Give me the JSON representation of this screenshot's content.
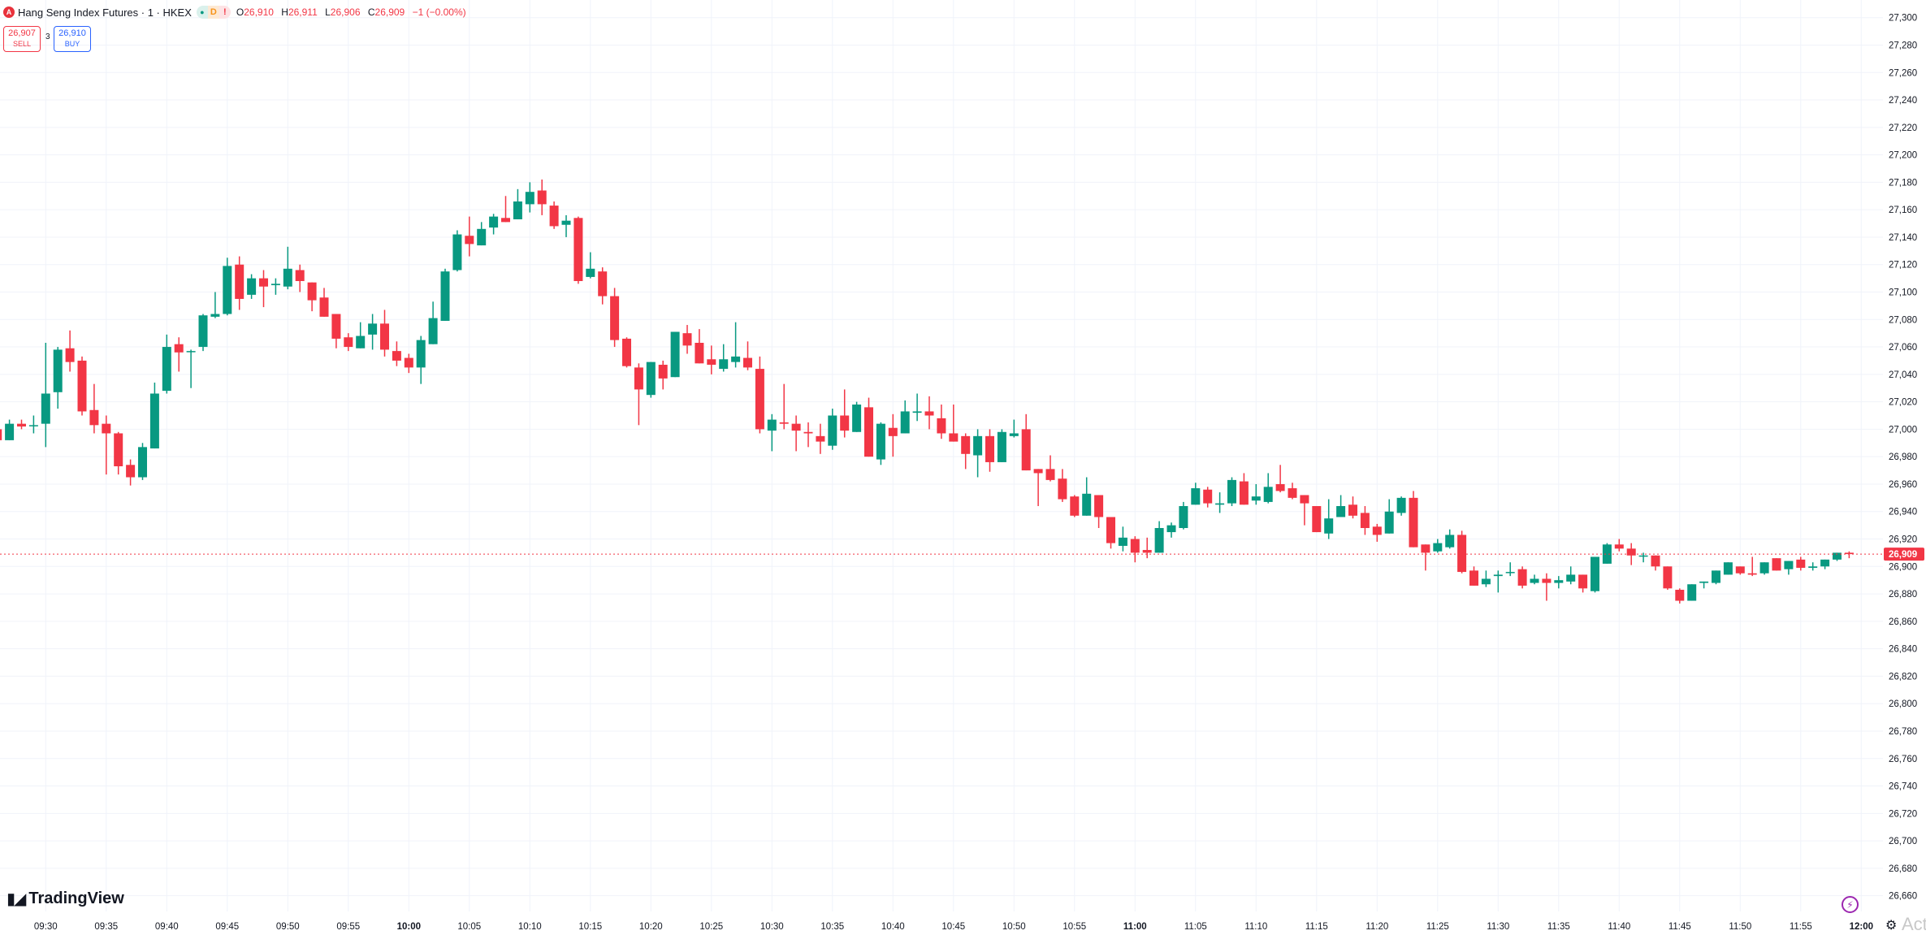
{
  "header": {
    "logo_letter": "A",
    "title": "Hang Seng Index Futures · 1 · HKEX",
    "pills": {
      "dot": "●",
      "d": "D",
      "alert": "!"
    },
    "ohlc": {
      "o_label": "O",
      "o": "26,910",
      "h_label": "H",
      "h": "26,911",
      "l_label": "L",
      "l": "26,906",
      "c_label": "C",
      "c": "26,909",
      "change": "−1 (−0.00%)"
    }
  },
  "trade": {
    "sell_price": "26,907",
    "sell_label": "SELL",
    "spread": "3",
    "buy_price": "26,910",
    "buy_label": "BUY"
  },
  "branding": {
    "logo_text": "TradingView"
  },
  "footer": {
    "lightning_icon": "lightning-icon",
    "settings_icon": "gear-icon",
    "watermark": "Activa"
  },
  "colors": {
    "up": "#089981",
    "down": "#f23645",
    "grid": "#f0f3fa",
    "last_price": "#f23645",
    "accent": "#2962ff"
  },
  "chart_data": {
    "type": "candlestick",
    "interval": "1 minute",
    "ylim": [
      26650,
      27310
    ],
    "grid": true,
    "last_price": 26909,
    "last_price_label": "26,909",
    "y_tick_labels": [
      "27,300",
      "27,280",
      "27,260",
      "27,240",
      "27,220",
      "27,200",
      "27,180",
      "27,160",
      "27,140",
      "27,120",
      "27,100",
      "27,080",
      "27,060",
      "27,040",
      "27,020",
      "27,000",
      "26,980",
      "26,960",
      "26,940",
      "26,920",
      "26,900",
      "26,880",
      "26,860",
      "26,840",
      "26,820",
      "26,800",
      "26,780",
      "26,760",
      "26,740",
      "26,720",
      "26,700",
      "26,680",
      "26,660"
    ],
    "x_tick_labels": [
      "09:30",
      "09:35",
      "09:40",
      "09:45",
      "09:50",
      "09:55",
      "10:00",
      "10:05",
      "10:10",
      "10:15",
      "10:20",
      "10:25",
      "10:30",
      "10:35",
      "10:40",
      "10:45",
      "10:50",
      "10:55",
      "11:00",
      "11:05",
      "11:10",
      "11:15",
      "11:20",
      "11:25",
      "11:30",
      "11:35",
      "11:40",
      "11:45",
      "11:50",
      "11:55",
      "12:00"
    ],
    "x_bold_labels": [
      "10:00",
      "11:00",
      "12:00"
    ],
    "candles_columns": [
      "time",
      "open",
      "high",
      "low",
      "close"
    ],
    "candles": [
      [
        "09:26",
        27000,
        27002,
        26990,
        26992
      ],
      [
        "09:27",
        26992,
        27007,
        26992,
        27004
      ],
      [
        "09:28",
        27004,
        27007,
        27000,
        27002
      ],
      [
        "09:29",
        27003,
        27010,
        26997,
        27003
      ],
      [
        "09:30",
        27004,
        27063,
        26987,
        27026
      ],
      [
        "09:31",
        27027,
        27060,
        27015,
        27058
      ],
      [
        "09:32",
        27059,
        27072,
        27042,
        27049
      ],
      [
        "09:33",
        27050,
        27053,
        27010,
        27013
      ],
      [
        "09:34",
        27014,
        27033,
        26997,
        27003
      ],
      [
        "09:35",
        27004,
        27010,
        26967,
        26997
      ],
      [
        "09:36",
        26997,
        26998,
        26967,
        26973
      ],
      [
        "09:37",
        26974,
        26978,
        26959,
        26965
      ],
      [
        "09:38",
        26965,
        26990,
        26963,
        26987
      ],
      [
        "09:39",
        26986,
        27034,
        26986,
        27026
      ],
      [
        "09:40",
        27028,
        27069,
        27026,
        27060
      ],
      [
        "09:41",
        27062,
        27067,
        27042,
        27056
      ],
      [
        "09:42",
        27057,
        27058,
        27030,
        27057
      ],
      [
        "09:43",
        27060,
        27084,
        27057,
        27083
      ],
      [
        "09:44",
        27082,
        27100,
        27081,
        27084
      ],
      [
        "09:45",
        27084,
        27125,
        27083,
        27119
      ],
      [
        "09:46",
        27120,
        27126,
        27087,
        27095
      ],
      [
        "09:47",
        27098,
        27113,
        27095,
        27110
      ],
      [
        "09:48",
        27110,
        27116,
        27089,
        27104
      ],
      [
        "09:49",
        27105,
        27110,
        27098,
        27106
      ],
      [
        "09:50",
        27104,
        27133,
        27102,
        27117
      ],
      [
        "09:51",
        27116,
        27120,
        27100,
        27108
      ],
      [
        "09:52",
        27107,
        27107,
        27086,
        27094
      ],
      [
        "09:53",
        27096,
        27103,
        27082,
        27082
      ],
      [
        "09:54",
        27084,
        27084,
        27059,
        27066
      ],
      [
        "09:55",
        27067,
        27070,
        27057,
        27060
      ],
      [
        "09:56",
        27059,
        27078,
        27059,
        27068
      ],
      [
        "09:57",
        27069,
        27084,
        27058,
        27077
      ],
      [
        "09:58",
        27077,
        27087,
        27053,
        27058
      ],
      [
        "09:59",
        27057,
        27064,
        27046,
        27050
      ],
      [
        "10:00",
        27052,
        27055,
        27041,
        27045
      ],
      [
        "10:01",
        27045,
        27068,
        27033,
        27065
      ],
      [
        "10:02",
        27062,
        27093,
        27062,
        27081
      ],
      [
        "10:03",
        27079,
        27117,
        27079,
        27115
      ],
      [
        "10:04",
        27116,
        27145,
        27115,
        27142
      ],
      [
        "10:05",
        27141,
        27155,
        27126,
        27135
      ],
      [
        "10:06",
        27134,
        27151,
        27134,
        27146
      ],
      [
        "10:07",
        27147,
        27157,
        27142,
        27155
      ],
      [
        "10:08",
        27154,
        27170,
        27151,
        27151
      ],
      [
        "10:09",
        27153,
        27175,
        27153,
        27166
      ],
      [
        "10:10",
        27164,
        27180,
        27158,
        27173
      ],
      [
        "10:11",
        27174,
        27182,
        27156,
        27164
      ],
      [
        "10:12",
        27163,
        27166,
        27146,
        27148
      ],
      [
        "10:13",
        27149,
        27156,
        27140,
        27152
      ],
      [
        "10:14",
        27154,
        27155,
        27106,
        27108
      ],
      [
        "10:15",
        27111,
        27129,
        27110,
        27117
      ],
      [
        "10:16",
        27115,
        27118,
        27091,
        27097
      ],
      [
        "10:17",
        27097,
        27103,
        27060,
        27065
      ],
      [
        "10:18",
        27066,
        27067,
        27045,
        27046
      ],
      [
        "10:19",
        27045,
        27048,
        27003,
        27029
      ],
      [
        "10:20",
        27025,
        27049,
        27023,
        27049
      ],
      [
        "10:21",
        27047,
        27050,
        27029,
        27037
      ],
      [
        "10:22",
        27038,
        27071,
        27038,
        27071
      ],
      [
        "10:23",
        27070,
        27076,
        27055,
        27061
      ],
      [
        "10:24",
        27063,
        27073,
        27048,
        27048
      ],
      [
        "10:25",
        27051,
        27061,
        27040,
        27047
      ],
      [
        "10:26",
        27044,
        27062,
        27042,
        27051
      ],
      [
        "10:27",
        27049,
        27078,
        27045,
        27053
      ],
      [
        "10:28",
        27052,
        27064,
        27043,
        27045
      ],
      [
        "10:29",
        27044,
        27053,
        26997,
        27000
      ],
      [
        "10:30",
        26999,
        27011,
        26984,
        27007
      ],
      [
        "10:31",
        27005,
        27033,
        27000,
        27004
      ],
      [
        "10:32",
        27004,
        27010,
        26984,
        26999
      ],
      [
        "10:33",
        26998,
        27005,
        26987,
        26997
      ],
      [
        "10:34",
        26995,
        27004,
        26982,
        26991
      ],
      [
        "10:35",
        26988,
        27015,
        26985,
        27010
      ],
      [
        "10:36",
        27010,
        27029,
        26994,
        26999
      ],
      [
        "10:37",
        26998,
        27020,
        26998,
        27018
      ],
      [
        "10:38",
        27016,
        27023,
        26980,
        26980
      ],
      [
        "10:39",
        26978,
        27005,
        26974,
        27004
      ],
      [
        "10:40",
        27001,
        27011,
        26980,
        26995
      ],
      [
        "10:41",
        26997,
        27021,
        26997,
        27013
      ],
      [
        "10:42",
        27012,
        27026,
        27006,
        27013
      ],
      [
        "10:43",
        27013,
        27024,
        27000,
        27010
      ],
      [
        "10:44",
        27008,
        27018,
        26993,
        26997
      ],
      [
        "10:45",
        26997,
        27018,
        26991,
        26991
      ],
      [
        "10:46",
        26995,
        26997,
        26971,
        26982
      ],
      [
        "10:47",
        26981,
        27000,
        26965,
        26995
      ],
      [
        "10:48",
        26995,
        27000,
        26969,
        26976
      ],
      [
        "10:49",
        26976,
        27000,
        26976,
        26998
      ],
      [
        "10:50",
        26995,
        27007,
        26994,
        26997
      ],
      [
        "10:51",
        27000,
        27011,
        26970,
        26970
      ],
      [
        "10:52",
        26971,
        26971,
        26944,
        26968
      ],
      [
        "10:53",
        26971,
        26981,
        26962,
        26963
      ],
      [
        "10:54",
        26964,
        26971,
        26947,
        26949
      ],
      [
        "10:55",
        26951,
        26952,
        26936,
        26937
      ],
      [
        "10:56",
        26937,
        26965,
        26937,
        26953
      ],
      [
        "10:57",
        26952,
        26952,
        26928,
        26936
      ],
      [
        "10:58",
        26936,
        26936,
        26913,
        26917
      ],
      [
        "10:59",
        26915,
        26929,
        26911,
        26921
      ],
      [
        "11:00",
        26920,
        26922,
        26903,
        26910
      ],
      [
        "11:01",
        26912,
        26921,
        26906,
        26910
      ],
      [
        "11:02",
        26910,
        26933,
        26910,
        26928
      ],
      [
        "11:03",
        26925,
        26932,
        26921,
        26930
      ],
      [
        "11:04",
        26928,
        26947,
        26927,
        26944
      ],
      [
        "11:05",
        26945,
        26961,
        26945,
        26957
      ],
      [
        "11:06",
        26956,
        26958,
        26943,
        26946
      ],
      [
        "11:07",
        26945,
        26954,
        26939,
        26946
      ],
      [
        "11:08",
        26946,
        26965,
        26944,
        26963
      ],
      [
        "11:09",
        26962,
        26968,
        26945,
        26945
      ],
      [
        "11:10",
        26948,
        26960,
        26945,
        26951
      ],
      [
        "11:11",
        26947,
        26968,
        26946,
        26958
      ],
      [
        "11:12",
        26960,
        26974,
        26954,
        26955
      ],
      [
        "11:13",
        26957,
        26961,
        26949,
        26950
      ],
      [
        "11:14",
        26952,
        26952,
        26930,
        26946
      ],
      [
        "11:15",
        26944,
        26944,
        26925,
        26925
      ],
      [
        "11:16",
        26924,
        26949,
        26920,
        26935
      ],
      [
        "11:17",
        26936,
        26952,
        26936,
        26944
      ],
      [
        "11:18",
        26945,
        26951,
        26935,
        26937
      ],
      [
        "11:19",
        26939,
        26944,
        26923,
        26928
      ],
      [
        "11:20",
        26929,
        26931,
        26918,
        26923
      ],
      [
        "11:21",
        26924,
        26949,
        26924,
        26940
      ],
      [
        "11:22",
        26939,
        26951,
        26937,
        26950
      ],
      [
        "11:23",
        26950,
        26955,
        26914,
        26914
      ],
      [
        "11:24",
        26916,
        26916,
        26897,
        26910
      ],
      [
        "11:25",
        26911,
        26920,
        26910,
        26917
      ],
      [
        "11:26",
        26914,
        26927,
        26913,
        26923
      ],
      [
        "11:27",
        26923,
        26926,
        26895,
        26896
      ],
      [
        "11:28",
        26897,
        26900,
        26886,
        26886
      ],
      [
        "11:29",
        26887,
        26897,
        26885,
        26891
      ],
      [
        "11:30",
        26893,
        26897,
        26881,
        26894
      ],
      [
        "11:31",
        26896,
        26903,
        26893,
        26896
      ],
      [
        "11:32",
        26898,
        26900,
        26884,
        26886
      ],
      [
        "11:33",
        26888,
        26894,
        26887,
        26891
      ],
      [
        "11:34",
        26891,
        26895,
        26875,
        26888
      ],
      [
        "11:35",
        26888,
        26893,
        26884,
        26890
      ],
      [
        "11:36",
        26889,
        26900,
        26887,
        26894
      ],
      [
        "11:37",
        26894,
        26894,
        26881,
        26884
      ],
      [
        "11:38",
        26882,
        26907,
        26881,
        26907
      ],
      [
        "11:39",
        26902,
        26917,
        26902,
        26916
      ],
      [
        "11:40",
        26916,
        26920,
        26911,
        26913
      ],
      [
        "11:41",
        26913,
        26917,
        26901,
        26908
      ],
      [
        "11:42",
        26908,
        26910,
        26903,
        26908
      ],
      [
        "11:43",
        26908,
        26908,
        26897,
        26900
      ],
      [
        "11:44",
        26900,
        26900,
        26883,
        26884
      ],
      [
        "11:45",
        26883,
        26884,
        26873,
        26875
      ],
      [
        "11:46",
        26875,
        26887,
        26875,
        26887
      ],
      [
        "11:47",
        26888,
        26889,
        26884,
        26889
      ],
      [
        "11:48",
        26888,
        26897,
        26887,
        26897
      ],
      [
        "11:49",
        26894,
        26903,
        26894,
        26903
      ],
      [
        "11:50",
        26900,
        26900,
        26894,
        26895
      ],
      [
        "11:51",
        26895,
        26907,
        26893,
        26894
      ],
      [
        "11:52",
        26895,
        26903,
        26894,
        26903
      ],
      [
        "11:53",
        26906,
        26906,
        26897,
        26897
      ],
      [
        "11:54",
        26898,
        26904,
        26894,
        26904
      ],
      [
        "11:55",
        26905,
        26907,
        26897,
        26899
      ],
      [
        "11:56",
        26899,
        26903,
        26897,
        26900
      ],
      [
        "11:57",
        26900,
        26905,
        26898,
        26905
      ],
      [
        "11:58",
        26905,
        26910,
        26904,
        26910
      ],
      [
        "11:59",
        26910,
        26911,
        26906,
        26909
      ]
    ]
  }
}
